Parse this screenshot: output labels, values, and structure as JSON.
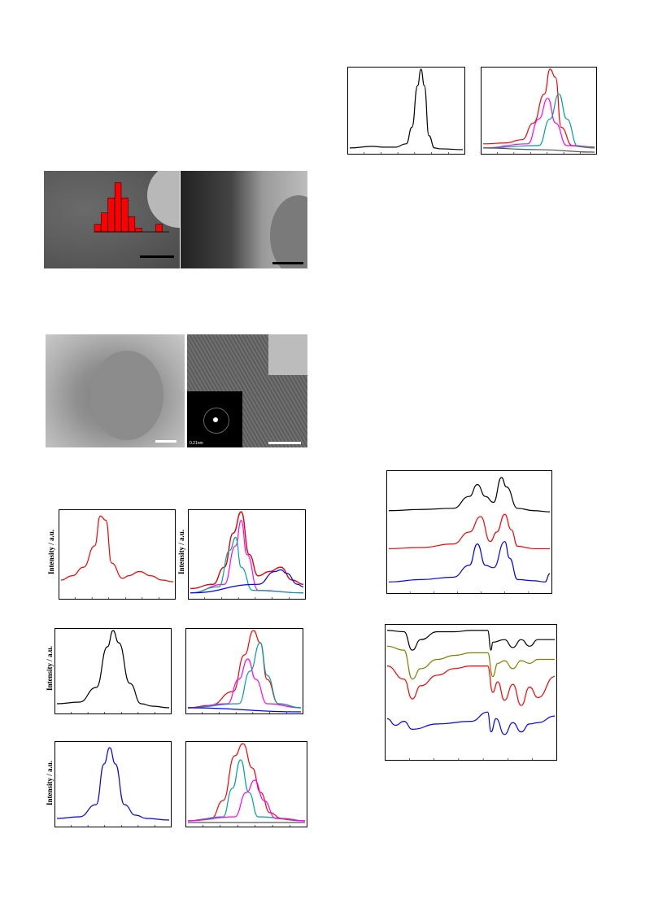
{
  "ylabel_text": "Intensity / a.u.",
  "saed_label": "0.21nm",
  "colors": {
    "black": "#000000",
    "red": "#ff0000",
    "blue": "#0000ff",
    "magenta": "#ff00ff",
    "cyan": "#00a0a0",
    "olive": "#808000",
    "gray": "#555555",
    "bar_red": "#ff0000"
  },
  "chart_data": [
    {
      "id": "uv_top_left",
      "type": "line",
      "series": [
        {
          "color": "black",
          "x": [
            0,
            0.2,
            0.3,
            0.4,
            0.5,
            0.55,
            0.6,
            0.63,
            0.66,
            0.7,
            0.75,
            0.8,
            1
          ],
          "y": [
            0.05,
            0.07,
            0.06,
            0.06,
            0.1,
            0.3,
            0.8,
            1.0,
            0.8,
            0.2,
            0.05,
            0.04,
            0.03
          ]
        }
      ]
    },
    {
      "id": "xps_top_right",
      "type": "line",
      "series": [
        {
          "color": "red",
          "x": [
            0,
            0.2,
            0.35,
            0.45,
            0.55,
            0.6,
            0.65,
            0.7,
            0.8,
            1
          ],
          "y": [
            0.1,
            0.11,
            0.15,
            0.35,
            0.7,
            1.0,
            0.9,
            0.3,
            0.08,
            0.06
          ]
        },
        {
          "color": "magenta",
          "x": [
            0,
            0.4,
            0.5,
            0.58,
            0.65,
            0.75,
            1
          ],
          "y": [
            0.05,
            0.1,
            0.4,
            0.65,
            0.35,
            0.08,
            0.05
          ]
        },
        {
          "color": "cyan",
          "x": [
            0,
            0.5,
            0.6,
            0.68,
            0.75,
            0.85,
            1
          ],
          "y": [
            0.05,
            0.08,
            0.4,
            0.7,
            0.4,
            0.07,
            0.05
          ]
        },
        {
          "color": "gray",
          "x": [
            0,
            0.5,
            1
          ],
          "y": [
            0.05,
            0.03,
            0.0
          ]
        }
      ]
    },
    {
      "id": "histogram",
      "type": "bar",
      "values": [
        2,
        5,
        9,
        13,
        9,
        4,
        1,
        0,
        0,
        2
      ],
      "ylim": [
        0,
        14
      ]
    },
    {
      "id": "raman_red",
      "type": "line",
      "series": [
        {
          "color": "red",
          "x": [
            0,
            0.1,
            0.2,
            0.3,
            0.35,
            0.4,
            0.45,
            0.55,
            0.6,
            0.7,
            0.8,
            0.9,
            1
          ],
          "y": [
            0.2,
            0.25,
            0.35,
            0.6,
            0.95,
            0.9,
            0.4,
            0.22,
            0.25,
            0.3,
            0.25,
            0.2,
            0.18
          ]
        }
      ]
    },
    {
      "id": "xps_red_fit",
      "type": "line",
      "series": [
        {
          "color": "black",
          "x": [
            0,
            0.2,
            0.3,
            0.38,
            0.45,
            0.52,
            0.6,
            0.7,
            0.8,
            0.9,
            1
          ],
          "y": [
            0.1,
            0.15,
            0.35,
            0.75,
            1.0,
            0.5,
            0.25,
            0.3,
            0.35,
            0.2,
            0.15
          ]
        },
        {
          "color": "red",
          "x": [
            0,
            0.2,
            0.3,
            0.38,
            0.45,
            0.52,
            0.6,
            0.7,
            0.8,
            0.9,
            1
          ],
          "y": [
            0.1,
            0.15,
            0.35,
            0.75,
            1.0,
            0.5,
            0.25,
            0.3,
            0.35,
            0.2,
            0.15
          ]
        },
        {
          "color": "magenta",
          "x": [
            0,
            0.3,
            0.4,
            0.45,
            0.5,
            0.6,
            1
          ],
          "y": [
            0.05,
            0.15,
            0.6,
            0.9,
            0.5,
            0.08,
            0.05
          ]
        },
        {
          "color": "cyan",
          "x": [
            0,
            0.25,
            0.35,
            0.4,
            0.45,
            0.55,
            1
          ],
          "y": [
            0.05,
            0.12,
            0.55,
            0.7,
            0.35,
            0.08,
            0.05
          ]
        },
        {
          "color": "blue",
          "x": [
            0,
            0.6,
            0.75,
            0.8,
            0.85,
            0.95,
            1
          ],
          "y": [
            0.05,
            0.15,
            0.3,
            0.32,
            0.28,
            0.15,
            0.12
          ]
        }
      ]
    },
    {
      "id": "raman_black",
      "type": "line",
      "series": [
        {
          "color": "black",
          "x": [
            0,
            0.2,
            0.35,
            0.45,
            0.5,
            0.55,
            0.65,
            0.75,
            0.85,
            1
          ],
          "y": [
            0.1,
            0.12,
            0.3,
            0.8,
            1.0,
            0.85,
            0.35,
            0.1,
            0.07,
            0.05
          ]
        }
      ]
    },
    {
      "id": "xps_black_fit",
      "type": "line",
      "series": [
        {
          "color": "red",
          "x": [
            0,
            0.2,
            0.4,
            0.5,
            0.58,
            0.64,
            0.7,
            0.8,
            1
          ],
          "y": [
            0.05,
            0.08,
            0.25,
            0.7,
            1.0,
            0.85,
            0.4,
            0.1,
            0.05
          ]
        },
        {
          "color": "magenta",
          "x": [
            0,
            0.35,
            0.45,
            0.53,
            0.6,
            0.7,
            1
          ],
          "y": [
            0.05,
            0.1,
            0.4,
            0.65,
            0.4,
            0.1,
            0.05
          ]
        },
        {
          "color": "cyan",
          "x": [
            0,
            0.45,
            0.55,
            0.64,
            0.7,
            0.8,
            1
          ],
          "y": [
            0.05,
            0.1,
            0.5,
            0.85,
            0.45,
            0.1,
            0.05
          ]
        },
        {
          "color": "blue",
          "x": [
            0,
            1
          ],
          "y": [
            0.05,
            0.0
          ]
        }
      ]
    },
    {
      "id": "raman_blue",
      "type": "line",
      "series": [
        {
          "color": "blue",
          "x": [
            0,
            0.2,
            0.35,
            0.42,
            0.47,
            0.52,
            0.6,
            0.7,
            0.8,
            1
          ],
          "y": [
            0.08,
            0.1,
            0.25,
            0.75,
            0.95,
            0.75,
            0.25,
            0.12,
            0.08,
            0.06
          ]
        }
      ]
    },
    {
      "id": "xps_blue_fit",
      "type": "line",
      "series": [
        {
          "color": "red",
          "x": [
            0,
            0.2,
            0.3,
            0.4,
            0.47,
            0.55,
            0.62,
            0.7,
            0.8,
            1
          ],
          "y": [
            0.05,
            0.08,
            0.3,
            0.85,
            1.0,
            0.7,
            0.4,
            0.15,
            0.08,
            0.05
          ]
        },
        {
          "color": "cyan",
          "x": [
            0,
            0.3,
            0.38,
            0.45,
            0.52,
            0.6,
            1
          ],
          "y": [
            0.05,
            0.1,
            0.45,
            0.8,
            0.4,
            0.1,
            0.05
          ]
        },
        {
          "color": "magenta",
          "x": [
            0,
            0.4,
            0.5,
            0.57,
            0.65,
            0.75,
            1
          ],
          "y": [
            0.05,
            0.1,
            0.4,
            0.55,
            0.3,
            0.08,
            0.05
          ]
        },
        {
          "color": "gray",
          "x": [
            0,
            1
          ],
          "y": [
            0.03,
            0.03
          ]
        }
      ]
    },
    {
      "id": "xrd_stack",
      "type": "line",
      "series": [
        {
          "color": "black",
          "x": [
            0,
            0.2,
            0.4,
            0.5,
            0.55,
            0.6,
            0.65,
            0.7,
            0.73,
            0.8,
            0.9,
            1
          ],
          "y": [
            0.68,
            0.69,
            0.7,
            0.8,
            0.9,
            0.8,
            0.75,
            0.96,
            0.88,
            0.7,
            0.68,
            0.67
          ]
        },
        {
          "color": "red",
          "x": [
            0,
            0.2,
            0.4,
            0.5,
            0.57,
            0.63,
            0.67,
            0.72,
            0.76,
            0.8,
            0.9,
            1
          ],
          "y": [
            0.36,
            0.37,
            0.4,
            0.5,
            0.63,
            0.42,
            0.5,
            0.65,
            0.52,
            0.38,
            0.36,
            0.36
          ]
        },
        {
          "color": "blue",
          "x": [
            0,
            0.2,
            0.4,
            0.5,
            0.55,
            0.6,
            0.65,
            0.72,
            0.75,
            0.8,
            0.9,
            0.97,
            1
          ],
          "y": [
            0.08,
            0.1,
            0.12,
            0.22,
            0.4,
            0.22,
            0.2,
            0.42,
            0.28,
            0.1,
            0.09,
            0.08,
            0.15
          ]
        }
      ]
    },
    {
      "id": "ftir_stack",
      "type": "line",
      "series": [
        {
          "color": "black",
          "x": [
            0,
            0.1,
            0.15,
            0.2,
            0.3,
            0.4,
            0.5,
            0.6,
            0.62,
            0.63,
            0.7,
            0.75,
            0.8,
            0.85,
            0.9,
            1
          ],
          "y": [
            0.97,
            0.96,
            0.82,
            0.9,
            0.96,
            0.96,
            0.97,
            0.97,
            0.82,
            0.88,
            0.9,
            0.84,
            0.9,
            0.85,
            0.9,
            0.9
          ]
        },
        {
          "color": "olive",
          "x": [
            0,
            0.1,
            0.15,
            0.2,
            0.3,
            0.4,
            0.5,
            0.6,
            0.63,
            0.66,
            0.7,
            0.75,
            0.8,
            0.85,
            0.9,
            1
          ],
          "y": [
            0.85,
            0.82,
            0.6,
            0.68,
            0.75,
            0.78,
            0.8,
            0.8,
            0.62,
            0.72,
            0.74,
            0.68,
            0.74,
            0.72,
            0.75,
            0.75
          ]
        },
        {
          "color": "red",
          "x": [
            0,
            0.1,
            0.15,
            0.2,
            0.3,
            0.4,
            0.5,
            0.6,
            0.63,
            0.66,
            0.7,
            0.75,
            0.8,
            0.85,
            0.9,
            1
          ],
          "y": [
            0.7,
            0.6,
            0.45,
            0.55,
            0.63,
            0.68,
            0.7,
            0.7,
            0.5,
            0.58,
            0.44,
            0.56,
            0.4,
            0.54,
            0.46,
            0.62
          ]
        },
        {
          "color": "blue",
          "x": [
            0,
            0.05,
            0.1,
            0.15,
            0.3,
            0.5,
            0.6,
            0.62,
            0.65,
            0.7,
            0.75,
            0.8,
            0.85,
            0.9,
            1
          ],
          "y": [
            0.3,
            0.25,
            0.28,
            0.22,
            0.26,
            0.28,
            0.35,
            0.2,
            0.3,
            0.18,
            0.27,
            0.2,
            0.26,
            0.27,
            0.32
          ]
        }
      ]
    }
  ]
}
